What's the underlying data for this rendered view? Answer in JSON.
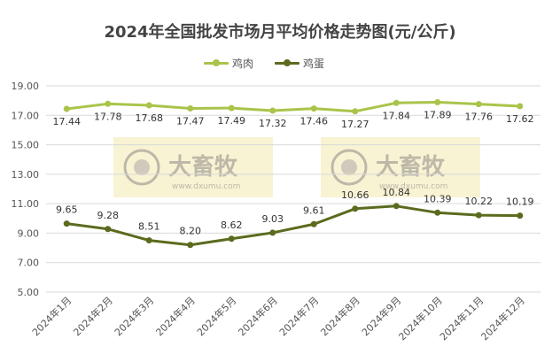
{
  "chart_data": {
    "type": "line",
    "title": "2024年全国批发市场月平均价格走势图(元/公斤)",
    "categories": [
      "2024年1月",
      "2024年2月",
      "2024年3月",
      "2024年4月",
      "2024年5月",
      "2024年6月",
      "2024年7月",
      "2024年8月",
      "2024年9月",
      "2024年10月",
      "2024年11月",
      "2024年12月"
    ],
    "series": [
      {
        "name": "鸡肉",
        "color": "#a9c44a",
        "values": [
          17.44,
          17.78,
          17.68,
          17.47,
          17.49,
          17.32,
          17.46,
          17.27,
          17.84,
          17.89,
          17.76,
          17.62
        ]
      },
      {
        "name": "鸡蛋",
        "color": "#5b6b1e",
        "values": [
          9.65,
          9.28,
          8.51,
          8.2,
          8.62,
          9.03,
          9.61,
          10.66,
          10.84,
          10.39,
          10.22,
          10.19
        ]
      }
    ],
    "y_ticks": [
      "19.00",
      "17.00",
      "15.00",
      "13.00",
      "11.00",
      "9.00",
      "7.00",
      "5.00"
    ],
    "ylim": [
      5,
      19
    ],
    "grid": true,
    "legend_position": "top"
  },
  "watermark": {
    "brand_text": "大畜牧",
    "url_text": "www.dxumu.com"
  }
}
